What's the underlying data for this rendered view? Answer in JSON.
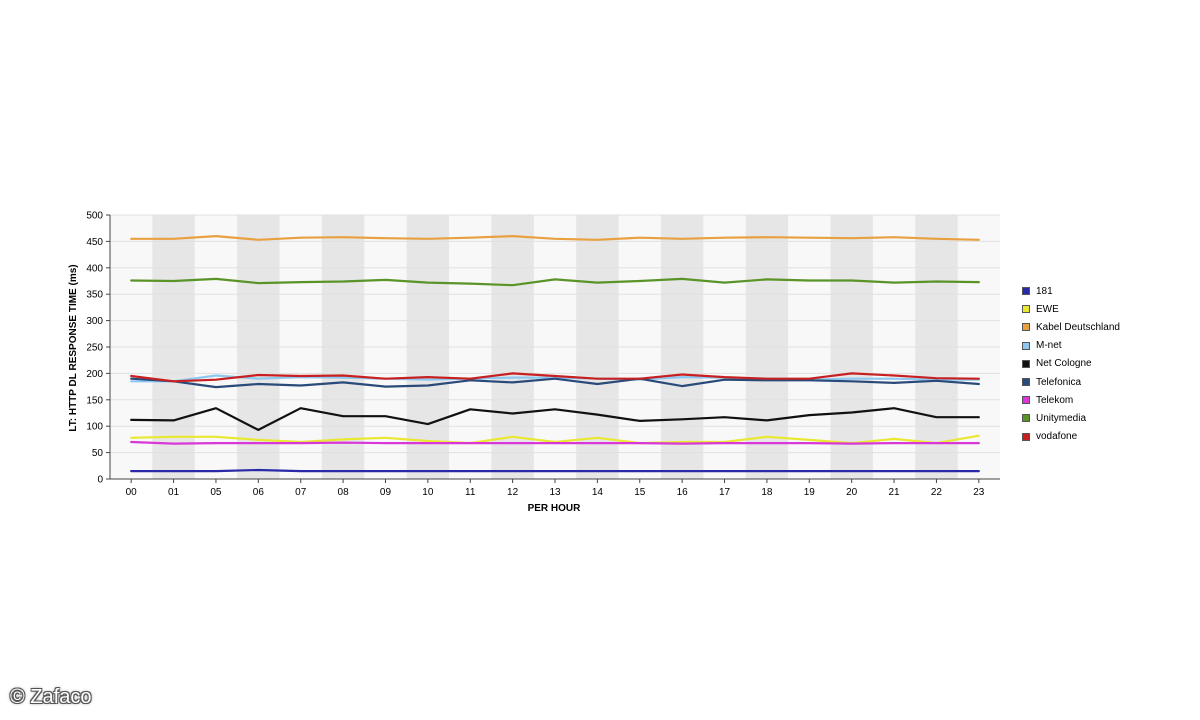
{
  "chart_data": {
    "type": "line",
    "title": "",
    "xlabel": "PER HOUR",
    "ylabel": "LT: HTTP DL RESPONSE TIME (ms)",
    "ylim": [
      0,
      500
    ],
    "yticks": [
      "0",
      "50",
      "100",
      "150",
      "200",
      "250",
      "300",
      "350",
      "400",
      "450",
      "500"
    ],
    "categories": [
      "00",
      "01",
      "05",
      "06",
      "07",
      "08",
      "09",
      "10",
      "11",
      "12",
      "13",
      "14",
      "15",
      "16",
      "17",
      "18",
      "19",
      "20",
      "21",
      "22",
      "23"
    ],
    "grid": "alternating vertical bands",
    "legend_position": "right",
    "series": [
      {
        "name": "181",
        "color": "#2a2aa8",
        "values": [
          15,
          15,
          15,
          17,
          15,
          15,
          15,
          15,
          15,
          15,
          15,
          15,
          15,
          15,
          15,
          15,
          15,
          15,
          15,
          15,
          15
        ]
      },
      {
        "name": "EWE",
        "color": "#e8e830",
        "values": [
          78,
          80,
          80,
          74,
          70,
          75,
          78,
          72,
          68,
          80,
          70,
          78,
          68,
          70,
          70,
          80,
          74,
          68,
          76,
          68,
          82
        ]
      },
      {
        "name": "Kabel Deutschland",
        "color": "#e8a040",
        "values": [
          455,
          455,
          460,
          453,
          457,
          458,
          456,
          455,
          457,
          460,
          455,
          453,
          457,
          455,
          457,
          458,
          457,
          456,
          458,
          455,
          453
        ]
      },
      {
        "name": "M-net",
        "color": "#8ec8f0",
        "values": [
          185,
          185,
          196,
          190,
          193,
          192,
          190,
          188,
          190,
          192,
          192,
          190,
          188,
          193,
          192,
          190,
          188,
          190,
          190,
          188,
          188
        ]
      },
      {
        "name": "Net Cologne",
        "color": "#111111",
        "values": [
          112,
          111,
          134,
          93,
          134,
          119,
          119,
          104,
          132,
          124,
          132,
          122,
          110,
          113,
          117,
          111,
          121,
          126,
          134,
          117,
          117
        ]
      },
      {
        "name": "Telefonica",
        "color": "#2a4a7a",
        "values": [
          190,
          185,
          174,
          180,
          177,
          183,
          175,
          177,
          187,
          183,
          190,
          180,
          190,
          176,
          188,
          187,
          187,
          185,
          182,
          186,
          180
        ]
      },
      {
        "name": "Telekom",
        "color": "#d838d8",
        "values": [
          70,
          67,
          68,
          68,
          68,
          69,
          68,
          68,
          68,
          68,
          68,
          68,
          68,
          67,
          68,
          68,
          68,
          67,
          68,
          68,
          68
        ]
      },
      {
        "name": "Unitymedia",
        "color": "#5a9428",
        "values": [
          376,
          375,
          379,
          371,
          373,
          374,
          377,
          372,
          370,
          367,
          378,
          372,
          375,
          379,
          372,
          378,
          376,
          376,
          372,
          374,
          373
        ]
      },
      {
        "name": "vodafone",
        "color": "#c82020",
        "values": [
          195,
          185,
          188,
          197,
          195,
          196,
          190,
          193,
          190,
          200,
          195,
          190,
          190,
          198,
          193,
          190,
          190,
          200,
          196,
          191,
          190
        ]
      }
    ]
  },
  "watermark": "© Zafaco"
}
